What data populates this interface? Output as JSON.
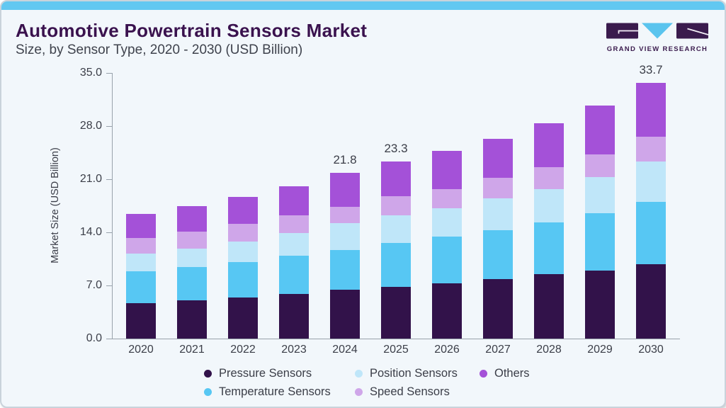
{
  "header": {
    "title": "Automotive Powertrain Sensors Market",
    "subtitle": "Size, by Sensor Type, 2020 - 2030 (USD Billion)"
  },
  "logo": {
    "text": "GRAND VIEW RESEARCH"
  },
  "colors": {
    "accent_strip": "#62c8f1",
    "card_background": "#f2f7fb",
    "card_border": "#c9d3db",
    "title_text": "#3a124e",
    "body_text": "#3b3e48",
    "axis_line": "#98a2ab",
    "logo_dark": "#3a1b4d",
    "logo_cyan": "#5ac4ee"
  },
  "chart_data": {
    "type": "bar",
    "stacked": true,
    "title": "Automotive Powertrain Sensors Market Size, by Sensor Type, 2020 - 2030 (USD Billion)",
    "xlabel": "",
    "ylabel": "Market Size (USD Billion)",
    "ylim": [
      0,
      35
    ],
    "yticks": [
      "0.0",
      "7.0",
      "14.0",
      "21.0",
      "28.0",
      "35.0"
    ],
    "grid": false,
    "legend_position": "bottom",
    "categories": [
      "2020",
      "2021",
      "2022",
      "2023",
      "2024",
      "2025",
      "2026",
      "2027",
      "2028",
      "2029",
      "2030"
    ],
    "series": [
      {
        "name": "Pressure Sensors",
        "color": "#32124a",
        "values": [
          4.7,
          5.0,
          5.4,
          5.9,
          6.4,
          6.8,
          7.3,
          7.8,
          8.5,
          9.0,
          9.8
        ]
      },
      {
        "name": "Temperature Sensors",
        "color": "#57c7f3",
        "values": [
          4.2,
          4.4,
          4.7,
          5.0,
          5.3,
          5.8,
          6.1,
          6.5,
          6.8,
          7.5,
          8.2
        ]
      },
      {
        "name": "Position Sensors",
        "color": "#bfe6f9",
        "values": [
          2.3,
          2.5,
          2.7,
          3.0,
          3.5,
          3.6,
          3.8,
          4.2,
          4.4,
          4.8,
          5.3
        ]
      },
      {
        "name": "Speed Sensors",
        "color": "#cfa6e9",
        "values": [
          2.1,
          2.2,
          2.3,
          2.3,
          2.2,
          2.6,
          2.5,
          2.7,
          2.9,
          3.0,
          3.3
        ]
      },
      {
        "name": "Others",
        "color": "#a451d8",
        "values": [
          3.1,
          3.4,
          3.6,
          3.9,
          4.4,
          4.5,
          5.0,
          5.1,
          5.8,
          6.4,
          7.1
        ]
      }
    ],
    "totals": [
      16.4,
      17.5,
      18.7,
      20.1,
      21.8,
      23.3,
      24.7,
      26.3,
      28.4,
      30.7,
      33.7
    ],
    "bar_total_labels": [
      "",
      "",
      "",
      "",
      "21.8",
      "23.3",
      "",
      "",
      "",
      "",
      "33.7"
    ],
    "legend_rows": [
      [
        "Pressure Sensors",
        "Position Sensors",
        "Others"
      ],
      [
        "Temperature Sensors",
        "Speed Sensors"
      ]
    ]
  }
}
